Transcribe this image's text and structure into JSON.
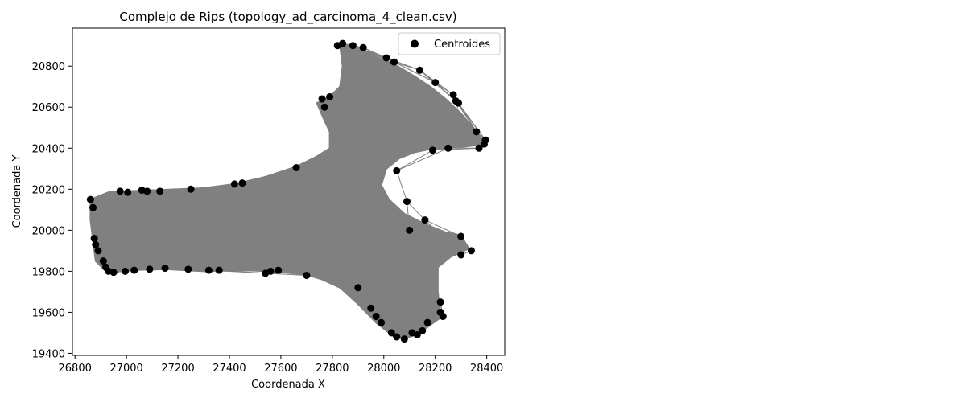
{
  "chart_data": {
    "type": "scatter",
    "title": "Complejo de Rips (topology_ad_carcinoma_4_clean.csv)",
    "xlabel": "Coordenada X",
    "ylabel": "Coordenada Y",
    "xlim": [
      26790,
      28470
    ],
    "ylim": [
      19390,
      20985
    ],
    "xticks": [
      26800,
      27000,
      27200,
      27400,
      27600,
      27800,
      28000,
      28200,
      28400
    ],
    "yticks": [
      19400,
      19600,
      19800,
      20000,
      20200,
      20400,
      20600,
      20800
    ],
    "legend": {
      "label": "Centroides",
      "placement": "top-right"
    },
    "grid": false,
    "colors": {
      "points": "#000000",
      "edges": "#808080",
      "background": "#ffffff"
    },
    "region_boundary": [
      [
        26860,
        20150
      ],
      [
        26930,
        20185
      ],
      [
        27000,
        20190
      ],
      [
        27100,
        20195
      ],
      [
        27200,
        20200
      ],
      [
        27300,
        20205
      ],
      [
        27420,
        20225
      ],
      [
        27540,
        20260
      ],
      [
        27660,
        20310
      ],
      [
        27740,
        20360
      ],
      [
        27790,
        20400
      ],
      [
        27790,
        20480
      ],
      [
        27760,
        20560
      ],
      [
        27740,
        20620
      ],
      [
        27790,
        20650
      ],
      [
        27830,
        20700
      ],
      [
        27840,
        20800
      ],
      [
        27830,
        20900
      ],
      [
        27900,
        20890
      ],
      [
        27960,
        20850
      ],
      [
        28040,
        20810
      ],
      [
        28120,
        20750
      ],
      [
        28180,
        20700
      ],
      [
        28240,
        20640
      ],
      [
        28300,
        20570
      ],
      [
        28360,
        20480
      ],
      [
        28395,
        20420
      ],
      [
        28300,
        20405
      ],
      [
        28200,
        20400
      ],
      [
        28120,
        20380
      ],
      [
        28060,
        20350
      ],
      [
        28010,
        20300
      ],
      [
        27990,
        20220
      ],
      [
        28020,
        20150
      ],
      [
        28080,
        20080
      ],
      [
        28160,
        20030
      ],
      [
        28240,
        19990
      ],
      [
        28300,
        19975
      ],
      [
        28330,
        19910
      ],
      [
        28260,
        19870
      ],
      [
        28210,
        19820
      ],
      [
        28210,
        19700
      ],
      [
        28220,
        19580
      ],
      [
        28170,
        19530
      ],
      [
        28080,
        19470
      ],
      [
        28040,
        19480
      ],
      [
        27970,
        19550
      ],
      [
        27900,
        19640
      ],
      [
        27830,
        19720
      ],
      [
        27760,
        19760
      ],
      [
        27680,
        19790
      ],
      [
        27560,
        19800
      ],
      [
        27450,
        19805
      ],
      [
        27300,
        19800
      ],
      [
        27150,
        19810
      ],
      [
        27000,
        19805
      ],
      [
        26920,
        19800
      ],
      [
        26880,
        19850
      ],
      [
        26870,
        19950
      ],
      [
        26860,
        20050
      ]
    ],
    "points": [
      [
        26860,
        20150
      ],
      [
        26870,
        20110
      ],
      [
        26875,
        19960
      ],
      [
        26880,
        19930
      ],
      [
        26890,
        19900
      ],
      [
        26910,
        19850
      ],
      [
        26920,
        19820
      ],
      [
        26930,
        19800
      ],
      [
        26950,
        19795
      ],
      [
        26975,
        20190
      ],
      [
        26995,
        19800
      ],
      [
        27005,
        20185
      ],
      [
        27030,
        19805
      ],
      [
        27060,
        20195
      ],
      [
        27080,
        20190
      ],
      [
        27090,
        19810
      ],
      [
        27130,
        20190
      ],
      [
        27150,
        19815
      ],
      [
        27240,
        19810
      ],
      [
        27250,
        20200
      ],
      [
        27320,
        19805
      ],
      [
        27360,
        19805
      ],
      [
        27420,
        20225
      ],
      [
        27450,
        20230
      ],
      [
        27540,
        19790
      ],
      [
        27560,
        19800
      ],
      [
        27590,
        19805
      ],
      [
        27660,
        20305
      ],
      [
        27700,
        19780
      ],
      [
        27760,
        20640
      ],
      [
        27770,
        20600
      ],
      [
        27790,
        20650
      ],
      [
        27820,
        20900
      ],
      [
        27840,
        20910
      ],
      [
        27880,
        20900
      ],
      [
        27900,
        19720
      ],
      [
        27920,
        20890
      ],
      [
        27950,
        19620
      ],
      [
        27970,
        19580
      ],
      [
        27990,
        19550
      ],
      [
        28010,
        20840
      ],
      [
        28030,
        19500
      ],
      [
        28040,
        20820
      ],
      [
        28050,
        19480
      ],
      [
        28080,
        19470
      ],
      [
        28050,
        20290
      ],
      [
        28090,
        20140
      ],
      [
        28100,
        20000
      ],
      [
        28110,
        19500
      ],
      [
        28130,
        19490
      ],
      [
        28140,
        20780
      ],
      [
        28150,
        19510
      ],
      [
        28160,
        20050
      ],
      [
        28170,
        19550
      ],
      [
        28190,
        20390
      ],
      [
        28200,
        20720
      ],
      [
        28220,
        19600
      ],
      [
        28220,
        19650
      ],
      [
        28230,
        19580
      ],
      [
        28250,
        20400
      ],
      [
        28270,
        20660
      ],
      [
        28280,
        20630
      ],
      [
        28290,
        20620
      ],
      [
        28300,
        19970
      ],
      [
        28300,
        19880
      ],
      [
        28340,
        19900
      ],
      [
        28360,
        20480
      ],
      [
        28370,
        20400
      ],
      [
        28390,
        20420
      ],
      [
        28395,
        20440
      ]
    ]
  }
}
